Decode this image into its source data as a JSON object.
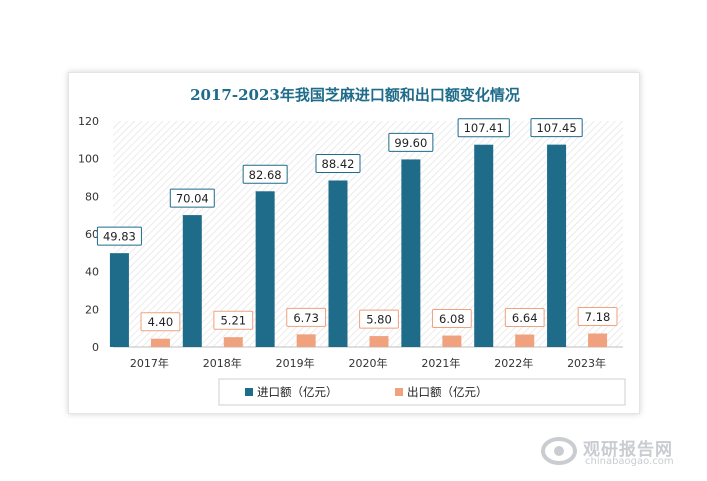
{
  "chart_data": {
    "type": "bar",
    "title": "2017-2023年我国芝麻进口额和出口额变化情况",
    "categories": [
      "2017年",
      "2018年",
      "2019年",
      "2020年",
      "2021年",
      "2022年",
      "2023年"
    ],
    "series": [
      {
        "name": "进口额（亿元）",
        "values": [
          49.83,
          70.04,
          82.68,
          88.42,
          99.6,
          107.41,
          107.45
        ],
        "labels": [
          "49.83",
          "70.04",
          "82.68",
          "88.42",
          "99.60",
          "107.41",
          "107.45"
        ],
        "color": "#1f6b8a"
      },
      {
        "name": "出口额（亿元）",
        "values": [
          4.4,
          5.21,
          6.73,
          5.8,
          6.08,
          6.64,
          7.18
        ],
        "labels": [
          "4.40",
          "5.21",
          "6.73",
          "5.80",
          "6.08",
          "6.64",
          "7.18"
        ],
        "color": "#f0a17e"
      }
    ],
    "yticks": [
      "0",
      "20",
      "40",
      "60",
      "80",
      "100",
      "120"
    ],
    "ylim": [
      0,
      120
    ],
    "grid": false,
    "legend_position": "bottom"
  },
  "watermark": {
    "cn": "观研报告网",
    "en": "chinabaogao.com"
  }
}
